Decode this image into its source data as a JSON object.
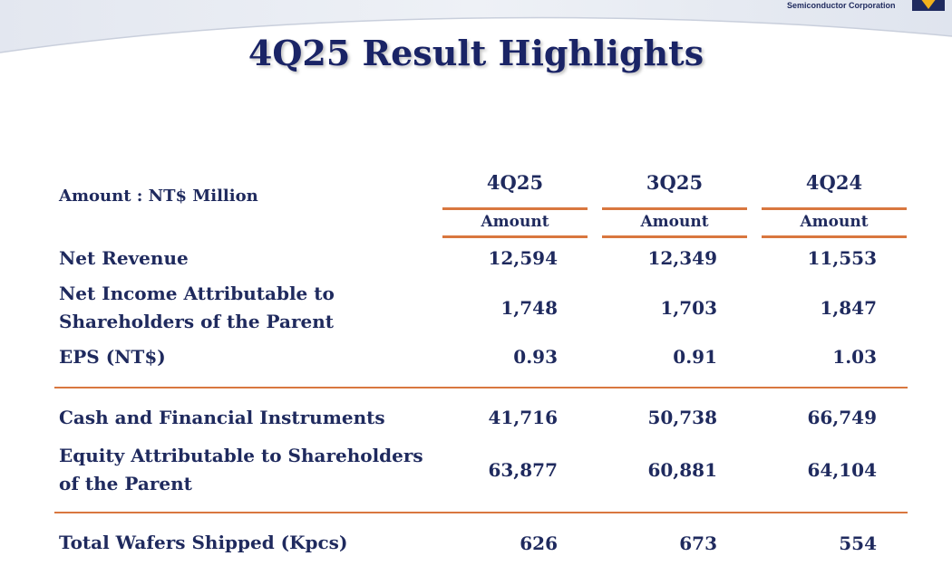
{
  "header": {
    "company": "Semiconductor Corporation",
    "title": "4Q25 Result Highlights"
  },
  "table": {
    "unit_label": "Amount : NT$ Million",
    "columns": [
      {
        "period": "4Q25",
        "sub": "Amount"
      },
      {
        "period": "3Q25",
        "sub": "Amount"
      },
      {
        "period": "4Q24",
        "sub": "Amount"
      }
    ],
    "rows": [
      {
        "label": "Net Revenue",
        "values": [
          "12,594",
          "12,349",
          "11,553"
        ]
      },
      {
        "label": "Net Income Attributable to Shareholders of the Parent",
        "values": [
          "1,748",
          "1,703",
          "1,847"
        ]
      },
      {
        "label": "EPS (NT$)",
        "values": [
          "0.93",
          "0.91",
          "1.03"
        ]
      },
      {
        "label": "Cash and Financial Instruments",
        "values": [
          "41,716",
          "50,738",
          "66,749"
        ]
      },
      {
        "label": "Equity Attributable to Shareholders of the Parent",
        "values": [
          "63,877",
          "60,881",
          "64,104"
        ]
      },
      {
        "label": "Total Wafers Shipped (Kpcs)",
        "values": [
          "626",
          "673",
          "554"
        ]
      }
    ]
  },
  "colors": {
    "title": "#1a2466",
    "text": "#1f2a5e",
    "accent_line": "#d9773f"
  }
}
